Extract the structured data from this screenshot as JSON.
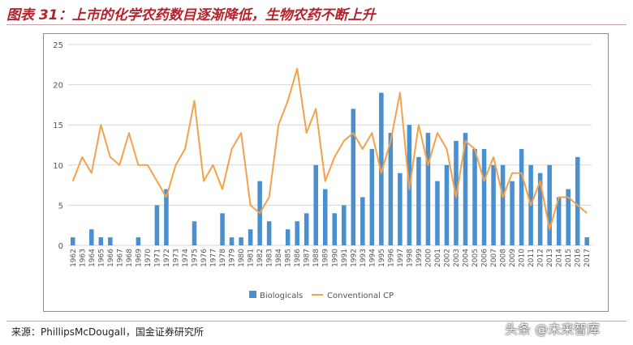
{
  "header": {
    "title": "图表 31：上市的化学农药数目逐渐降低，生物农药不断上升"
  },
  "footer": {
    "source": "来源：PhillipsMcDougall，国金证券研究所",
    "watermark": "头条 @未来智库"
  },
  "colors": {
    "biologicals": "#4a8fce",
    "conventional": "#f5a14a",
    "title": "#b5222a"
  },
  "chart_data": {
    "type": "bar",
    "title": "",
    "xlabel": "",
    "ylabel": "",
    "ylim": [
      0,
      25
    ],
    "yticks": [
      0,
      5,
      10,
      15,
      20,
      25
    ],
    "grid": true,
    "legend_position": "bottom",
    "categories": [
      "1962",
      "1963",
      "1964",
      "1965",
      "1966",
      "1967",
      "1968",
      "1969",
      "1970",
      "1971",
      "1972",
      "1973",
      "1974",
      "1975",
      "1976",
      "1977",
      "1978",
      "1979",
      "1980",
      "1981",
      "1982",
      "1983",
      "1984",
      "1985",
      "1986",
      "1987",
      "1988",
      "1989",
      "1990",
      "1991",
      "1992",
      "1993",
      "1994",
      "1995",
      "1996",
      "1997",
      "1998",
      "1999",
      "2000",
      "2001",
      "2002",
      "2003",
      "2004",
      "2005",
      "2006",
      "2007",
      "2008",
      "2009",
      "2010",
      "2011",
      "2012",
      "2013",
      "2014",
      "2015",
      "2016",
      "2017"
    ],
    "series": [
      {
        "name": "Biologicals",
        "type": "bar",
        "values": [
          1,
          0,
          2,
          1,
          1,
          0,
          0,
          1,
          0,
          5,
          7,
          0,
          0,
          3,
          0,
          0,
          4,
          1,
          1,
          2,
          8,
          3,
          0,
          2,
          3,
          4,
          10,
          7,
          4,
          5,
          17,
          6,
          12,
          19,
          14,
          9,
          15,
          11,
          14,
          8,
          10,
          13,
          14,
          12,
          12,
          10,
          10,
          8,
          12,
          10,
          9,
          10,
          6,
          7,
          11,
          1
        ]
      },
      {
        "name": "Conventional CP",
        "type": "line",
        "values": [
          8,
          11,
          9,
          15,
          11,
          10,
          14,
          10,
          10,
          8,
          6,
          10,
          12,
          18,
          8,
          10,
          7,
          12,
          14,
          5,
          4,
          6,
          15,
          18,
          22,
          14,
          17,
          8,
          11,
          13,
          14,
          12,
          14,
          9,
          13,
          19,
          7,
          15,
          10,
          14,
          12,
          6,
          13,
          12,
          8,
          11,
          6,
          9,
          9,
          5,
          8,
          2,
          6,
          6,
          5,
          4
        ]
      }
    ]
  }
}
